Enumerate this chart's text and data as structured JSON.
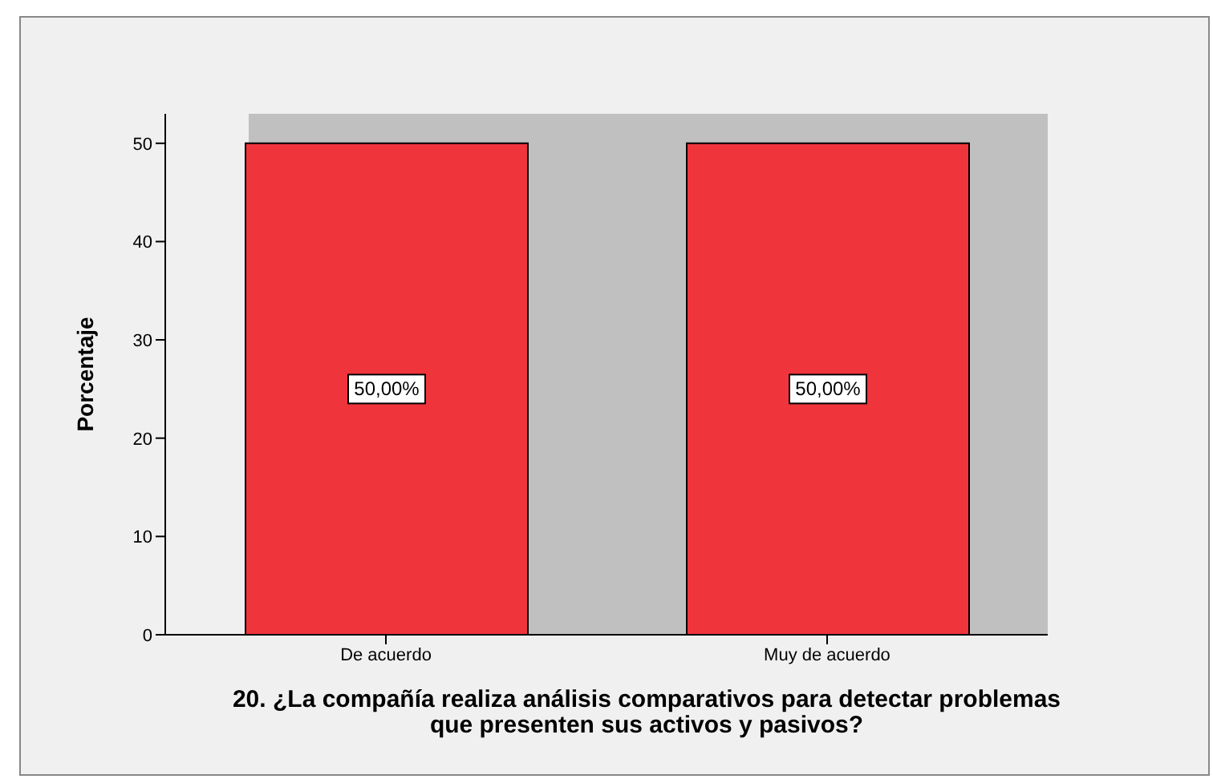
{
  "chart_data": {
    "type": "bar",
    "categories": [
      "De acuerdo",
      "Muy de acuerdo"
    ],
    "values": [
      50,
      50
    ],
    "color": "#f0343b",
    "value_labels": [
      "50,00%",
      "50,00%"
    ],
    "ylabel": "Porcentaje",
    "xlabel": "20. ¿La compañía realiza análisis comparativos para detectar problemas que presenten sus activos y pasivos?",
    "ylim": [
      0,
      53
    ],
    "yticks": [
      0,
      10,
      20,
      30,
      40,
      50
    ],
    "grid": false,
    "legend": false
  }
}
